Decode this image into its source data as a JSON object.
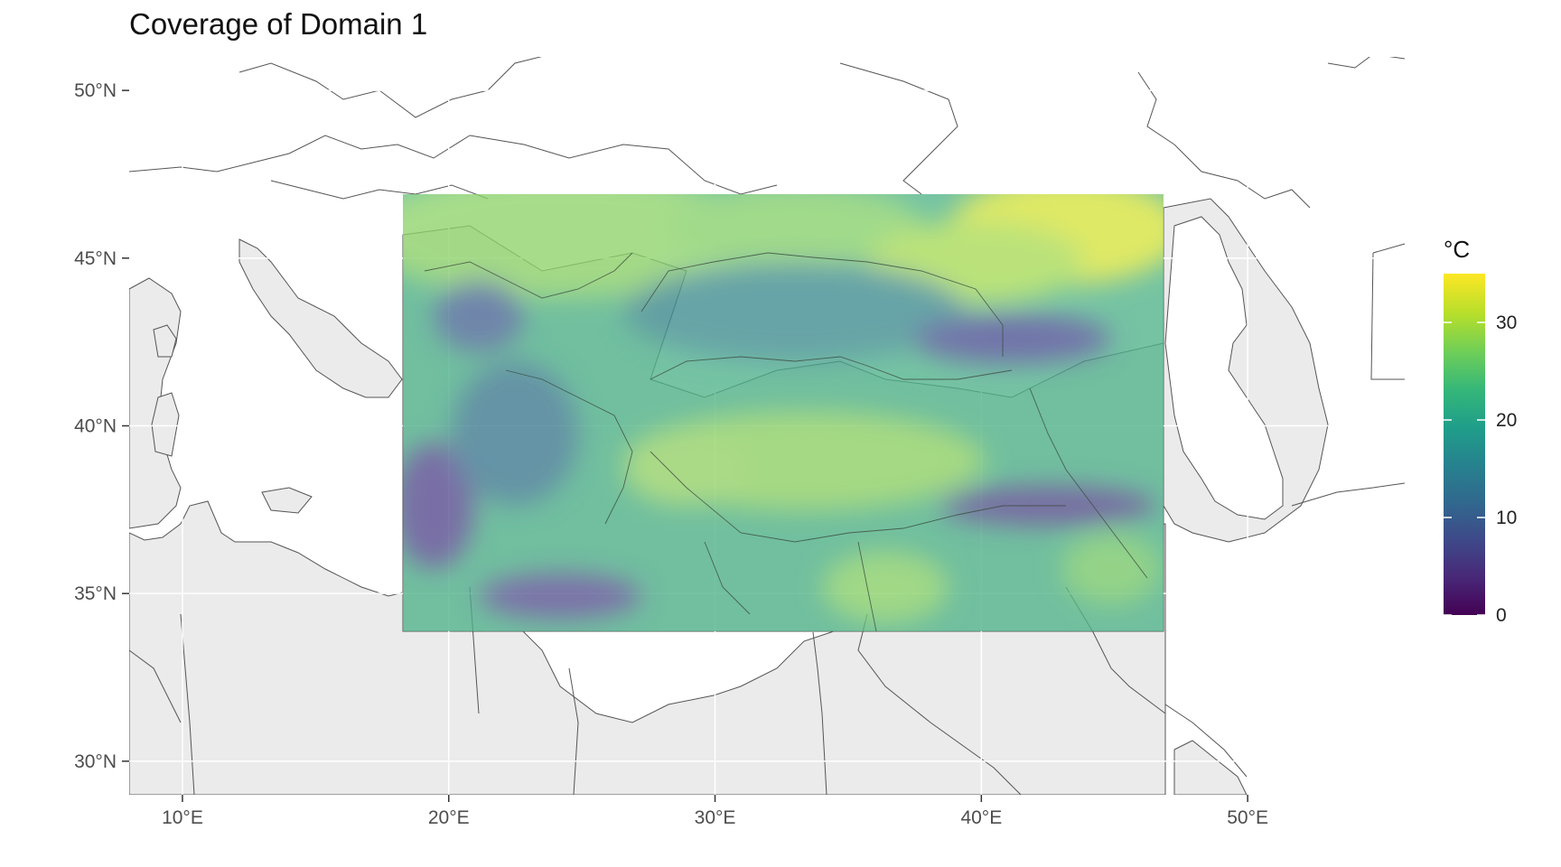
{
  "title": "Coverage of Domain 1",
  "map": {
    "lon_range": [
      8,
      56
    ],
    "lat_range": [
      29,
      51
    ],
    "x_ticks": [
      {
        "value": 10,
        "label": "10°E"
      },
      {
        "value": 20,
        "label": "20°E"
      },
      {
        "value": 30,
        "label": "30°E"
      },
      {
        "value": 40,
        "label": "40°E"
      },
      {
        "value": 50,
        "label": "50°E"
      }
    ],
    "y_ticks": [
      {
        "value": 30,
        "label": "30°N"
      },
      {
        "value": 35,
        "label": "35°N"
      },
      {
        "value": 40,
        "label": "40°N"
      },
      {
        "value": 45,
        "label": "45°N"
      },
      {
        "value": 50,
        "label": "50°N"
      }
    ],
    "domain_extent": {
      "lon": [
        18.6,
        48.1
      ],
      "lat": [
        33.9,
        46.9
      ]
    },
    "colors": {
      "land": "#ebebeb",
      "border": "#555555",
      "grid": "#ffffff",
      "sea": "#ffffff"
    }
  },
  "legend": {
    "title": "°C",
    "min": 0,
    "max": 35,
    "ticks": [
      {
        "value": 0,
        "label": "0"
      },
      {
        "value": 10,
        "label": "10"
      },
      {
        "value": 20,
        "label": "20"
      },
      {
        "value": 30,
        "label": "30"
      }
    ],
    "palette": [
      "#440154",
      "#482878",
      "#3e4989",
      "#31688e",
      "#26828e",
      "#1f9e89",
      "#35b779",
      "#6ece58",
      "#b5de2b",
      "#fde725"
    ]
  }
}
